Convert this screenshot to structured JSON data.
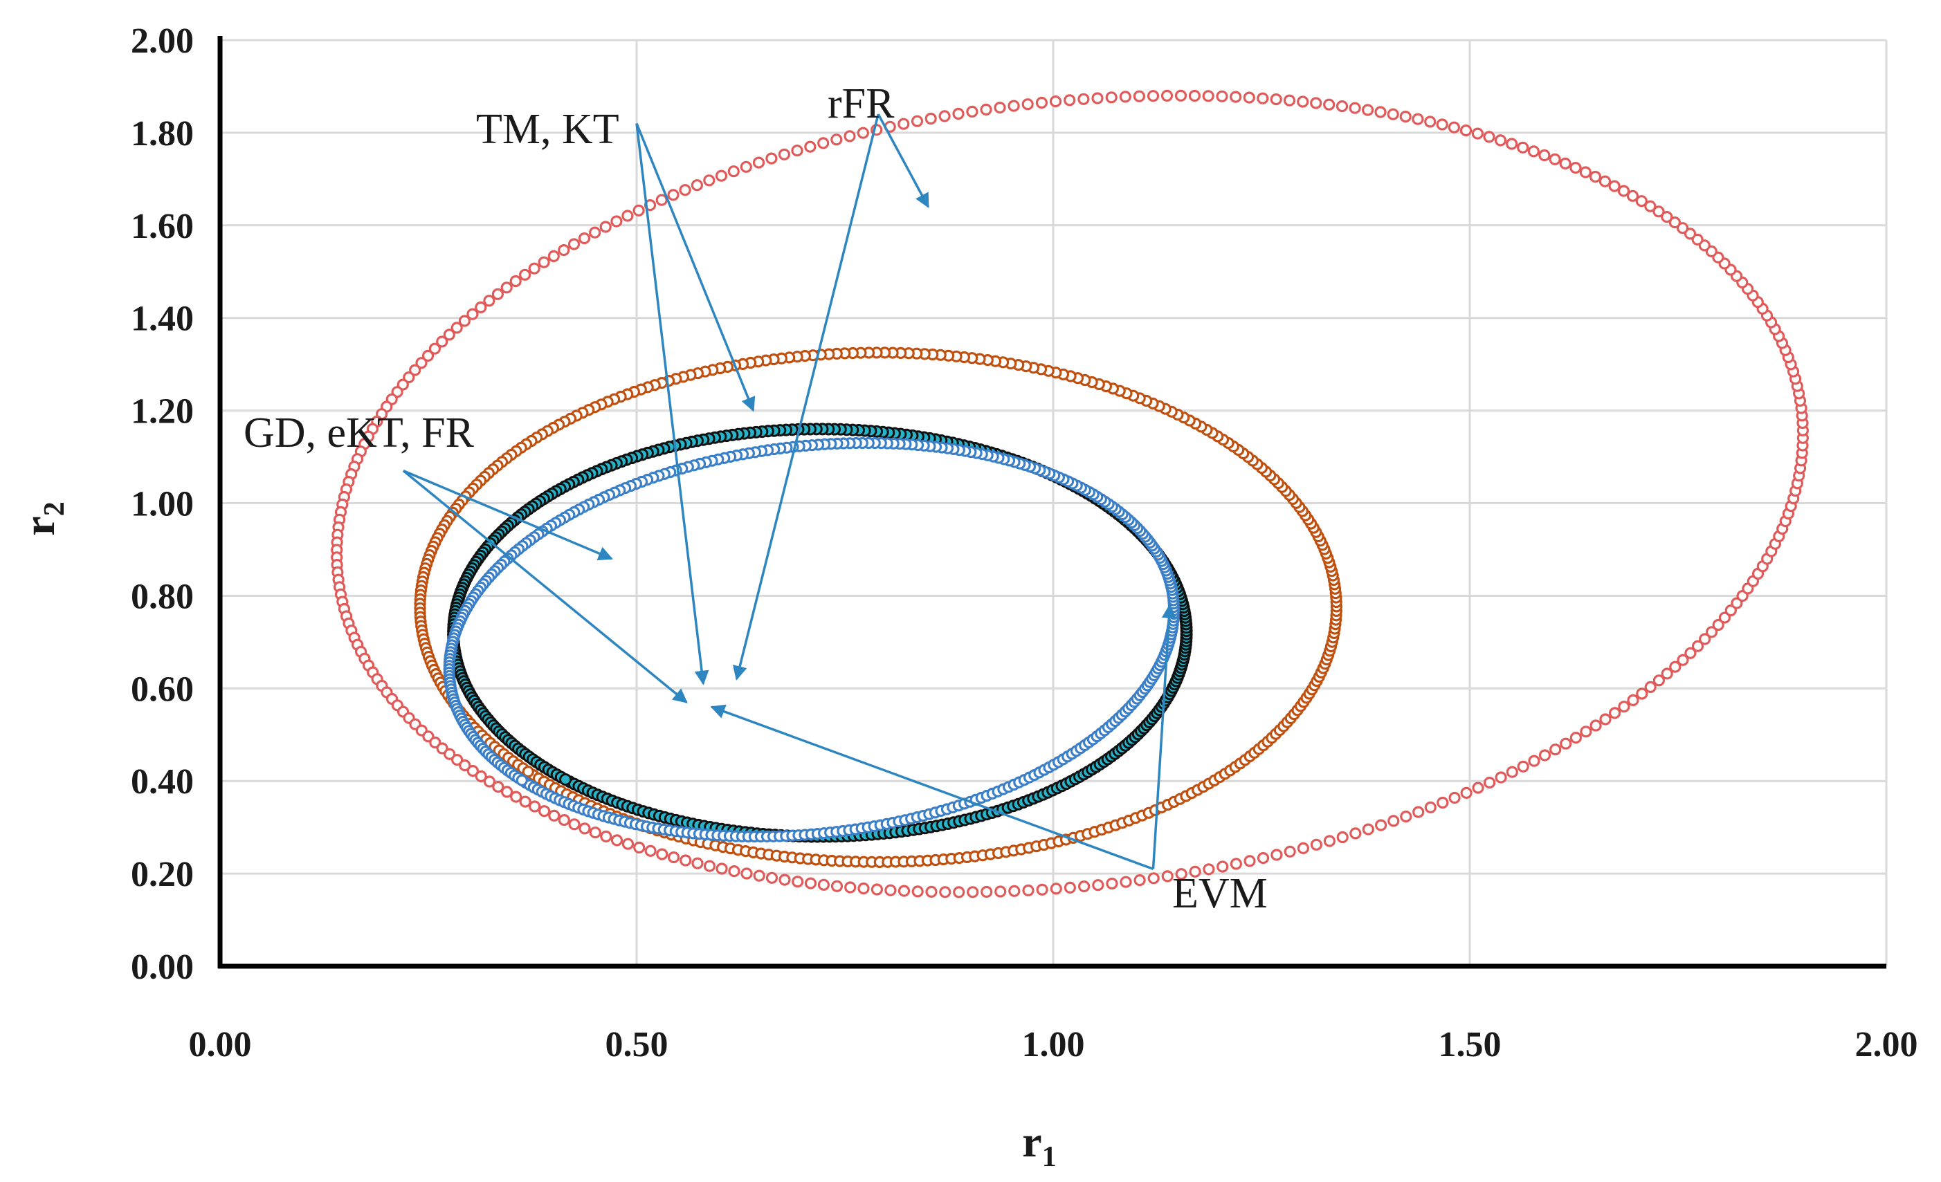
{
  "chart_data": {
    "type": "scatter",
    "title": "",
    "xlabel": "r",
    "xlabel_sub": "1",
    "ylabel": "r",
    "ylabel_sub": "2",
    "xlim": [
      0,
      2
    ],
    "ylim": [
      0,
      2
    ],
    "grid": true,
    "x_ticks": [
      "0.00",
      "0.50",
      "1.00",
      "1.50",
      "2.00"
    ],
    "y_ticks": [
      "0.00",
      "0.20",
      "0.40",
      "0.60",
      "0.80",
      "1.00",
      "1.20",
      "1.40",
      "1.60",
      "1.80",
      "2.00"
    ],
    "colors": {
      "rFR": "#e05a5a",
      "TM_KT": "#c0500f",
      "EVM": "#1a1a1a",
      "GD": "#3a7fc8",
      "marker_fill": "#29b3c9",
      "arrow": "#2e86c1",
      "axis": "#000000",
      "grid": "#d9d9d9"
    },
    "series": [
      {
        "name": "rFR",
        "shape": "ellipse",
        "center": [
          1.02,
          1.02
        ],
        "radius_x_at_y_center": 0.87,
        "y_range": [
          0.16,
          1.88
        ],
        "start": [
          0.6,
          0.62
        ],
        "points": 330,
        "marker": "hollow-circle",
        "color": "#e05a5a"
      },
      {
        "name": "TM, KT",
        "shape": "ellipse",
        "center": [
          0.79,
          0.775
        ],
        "radius_x_at_y_center": 0.55,
        "y_range": [
          0.24,
          1.34
        ],
        "start": [
          0.59,
          0.6
        ],
        "points": 360,
        "marker": "hollow-circle",
        "color": "#c0500f"
      },
      {
        "name": "EVM",
        "shape": "ellipse",
        "center": [
          0.72,
          0.72
        ],
        "radius_x_at_y_center": 0.44,
        "y_range": [
          0.28,
          1.16
        ],
        "start": [
          0.58,
          0.57
        ],
        "points": 380,
        "marker": "filled-circle-dark-edge",
        "color": "#1a1a1a"
      },
      {
        "name": "GD, eKT, FR",
        "shape": "ellipse",
        "center": [
          0.71,
          0.705
        ],
        "radius_x_at_y_center": 0.43,
        "y_range": [
          0.28,
          1.13
        ],
        "start": [
          0.56,
          0.57
        ],
        "points": 360,
        "marker": "hollow-circle",
        "color": "#3a7fc8"
      }
    ],
    "annotations": [
      {
        "text": "TM, KT",
        "anchor": [
          0.5,
          1.82
        ],
        "targets": [
          [
            0.64,
            1.2
          ],
          [
            0.58,
            0.61
          ]
        ]
      },
      {
        "text": "rFR",
        "anchor": [
          0.79,
          1.84
        ],
        "targets": [
          [
            0.85,
            1.64
          ],
          [
            0.62,
            0.62
          ]
        ]
      },
      {
        "text": "GD, eKT, FR",
        "anchor": [
          0.22,
          1.07
        ],
        "targets": [
          [
            0.47,
            0.88
          ],
          [
            0.56,
            0.57
          ]
        ]
      },
      {
        "text": "EVM",
        "anchor": [
          1.12,
          0.21
        ],
        "targets": [
          [
            1.14,
            0.78
          ],
          [
            0.59,
            0.56
          ]
        ]
      }
    ]
  }
}
